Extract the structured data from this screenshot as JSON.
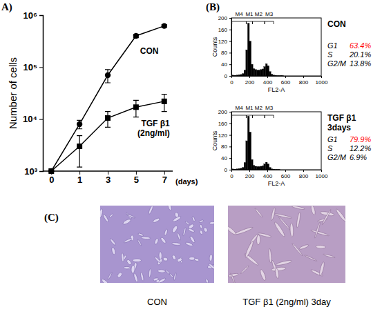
{
  "chart_data": [
    {
      "type": "line",
      "panel": "A)",
      "categories": [
        "0",
        "1",
        "3",
        "5",
        "7"
      ],
      "x_label": "(days)",
      "y_label": "Number of cells",
      "log": "y",
      "ylim": [
        1000,
        1000000
      ],
      "yticks": [
        {
          "value": 1000,
          "label": "10³"
        },
        {
          "value": 10000,
          "label": "10⁴"
        },
        {
          "value": 100000,
          "label": "10⁵"
        },
        {
          "value": 1000000,
          "label": "10⁶"
        }
      ],
      "series": [
        {
          "name": "CON",
          "color": "#000000",
          "marker": "circle",
          "line_style": "solid",
          "values": [
            1000,
            8000,
            70000,
            400000,
            620000
          ],
          "errors": [
            0,
            1500,
            20000,
            30000,
            40000
          ]
        },
        {
          "name": "TGF β1 (2ng/ml)",
          "color": "#000000",
          "marker": "square",
          "line_style": "solid",
          "values": [
            1000,
            3000,
            10500,
            17000,
            22000
          ],
          "errors": [
            0,
            1800,
            3500,
            6000,
            8000
          ]
        }
      ]
    },
    {
      "type": "histogram",
      "panel": "(B)",
      "title": [
        "CON"
      ],
      "x_label": "FL2-A",
      "y_label": "Counts",
      "color": "#000000",
      "bins": [
        0,
        20,
        40,
        60,
        80,
        100,
        120,
        140,
        160,
        180,
        200,
        220,
        240,
        260,
        280,
        300,
        320,
        340,
        360,
        380,
        400,
        420,
        440,
        460,
        480,
        500,
        520,
        540,
        560,
        580,
        600,
        620,
        640,
        660,
        680,
        700,
        720,
        740,
        760,
        780,
        800,
        820,
        840,
        860,
        880,
        900,
        920,
        940,
        960,
        980,
        1000
      ],
      "counts": [
        3,
        2,
        2,
        3,
        4,
        5,
        8,
        20,
        90,
        182,
        120,
        40,
        25,
        22,
        20,
        20,
        22,
        24,
        32,
        42,
        35,
        15,
        6,
        3,
        2,
        1,
        1,
        1,
        1,
        0,
        0,
        0,
        0,
        0,
        0,
        0,
        0,
        0,
        0,
        0,
        0,
        0,
        0,
        0,
        0,
        0,
        0,
        0,
        0,
        0
      ],
      "xlim": [
        0,
        1000
      ],
      "xticks": [
        0,
        200,
        400,
        600,
        800,
        1000
      ],
      "ylim": [
        0,
        200
      ],
      "yticks": [
        0,
        40,
        80,
        120,
        160,
        200
      ],
      "gates": [
        {
          "label": "M4",
          "range": [
            5,
            165
          ]
        },
        {
          "label": "M1",
          "range": [
            165,
            235
          ]
        },
        {
          "label": "M2",
          "range": [
            235,
            370
          ]
        },
        {
          "label": "M3",
          "range": [
            370,
            470
          ]
        }
      ],
      "phases": [
        {
          "name": "G1",
          "label": "63.4%",
          "color": "#ff0000"
        },
        {
          "name": "S",
          "label": "20.1%",
          "color": "#000000"
        },
        {
          "name": "G2/M",
          "label": "13.8%",
          "color": "#000000"
        }
      ]
    },
    {
      "type": "histogram",
      "title": [
        "TGF β1",
        "3days"
      ],
      "x_label": "FL2-A",
      "y_label": "Counts",
      "color": "#000000",
      "bins": [
        0,
        20,
        40,
        60,
        80,
        100,
        120,
        140,
        160,
        180,
        200,
        220,
        240,
        260,
        280,
        300,
        320,
        340,
        360,
        380,
        400,
        420,
        440,
        460,
        480,
        500,
        520,
        540,
        560,
        580,
        600,
        620,
        640,
        660,
        680,
        700,
        720,
        740,
        760,
        780,
        800,
        820,
        840,
        860,
        880,
        900,
        920,
        940,
        960,
        980,
        1000
      ],
      "counts": [
        3,
        2,
        2,
        3,
        4,
        5,
        8,
        25,
        100,
        185,
        130,
        35,
        15,
        12,
        11,
        11,
        12,
        14,
        20,
        26,
        20,
        8,
        3,
        2,
        1,
        1,
        1,
        0,
        0,
        0,
        0,
        0,
        0,
        0,
        0,
        0,
        0,
        0,
        0,
        0,
        0,
        0,
        0,
        0,
        0,
        0,
        0,
        0,
        0,
        0
      ],
      "xlim": [
        0,
        1000
      ],
      "xticks": [
        0,
        200,
        400,
        600,
        800,
        1000
      ],
      "ylim": [
        0,
        200
      ],
      "yticks": [
        0,
        40,
        80,
        120,
        160,
        200
      ],
      "gates": [
        {
          "label": "M4",
          "range": [
            5,
            165
          ]
        },
        {
          "label": "M1",
          "range": [
            165,
            235
          ]
        },
        {
          "label": "M2",
          "range": [
            235,
            370
          ]
        },
        {
          "label": "M3",
          "range": [
            370,
            470
          ]
        }
      ],
      "phases": [
        {
          "name": "G1",
          "label": "79.9%",
          "color": "#ff0000"
        },
        {
          "name": "S",
          "label": "12.2%",
          "color": "#000000"
        },
        {
          "name": "G2/M",
          "label": "6.9%",
          "color": "#000000"
        }
      ]
    }
  ],
  "images": {
    "panel": "(C)",
    "captions": [
      "CON",
      "TGF β1 (2ng/ml) 3day"
    ]
  }
}
